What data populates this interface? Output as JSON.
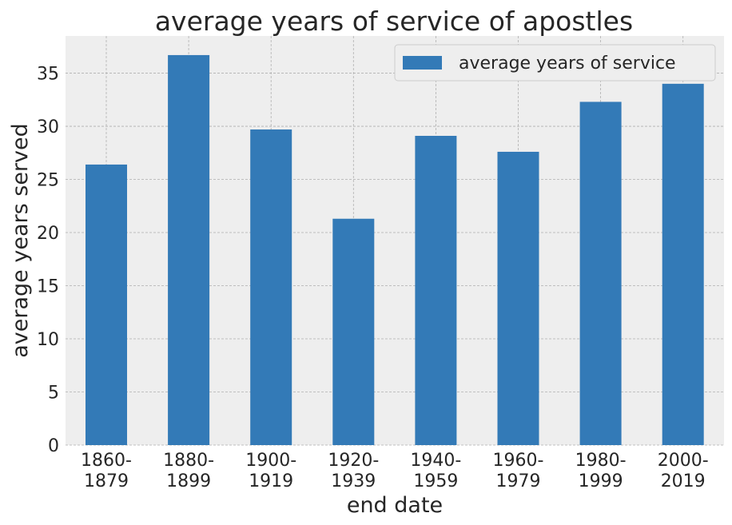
{
  "chart_data": {
    "type": "bar",
    "title": "average years of service of apostles",
    "xlabel": "end date",
    "ylabel": "average years served",
    "categories": [
      [
        "1860-",
        "1879"
      ],
      [
        "1880-",
        "1899"
      ],
      [
        "1900-",
        "1919"
      ],
      [
        "1920-",
        "1939"
      ],
      [
        "1940-",
        "1959"
      ],
      [
        "1960-",
        "1979"
      ],
      [
        "1980-",
        "1999"
      ],
      [
        "2000-",
        "2019"
      ]
    ],
    "series": [
      {
        "name": "average years of service",
        "values": [
          26.4,
          36.7,
          29.7,
          21.3,
          29.1,
          27.6,
          32.3,
          34.0
        ]
      }
    ],
    "ylim": [
      0,
      38.5
    ],
    "yticks": [
      0,
      5,
      10,
      15,
      20,
      25,
      30,
      35
    ],
    "grid": true,
    "legend_position": "top-right",
    "colors": {
      "bar": "#337ab7",
      "plot_background": "#eeeeee",
      "grid": "#b0b0b0",
      "text": "#262626"
    }
  }
}
